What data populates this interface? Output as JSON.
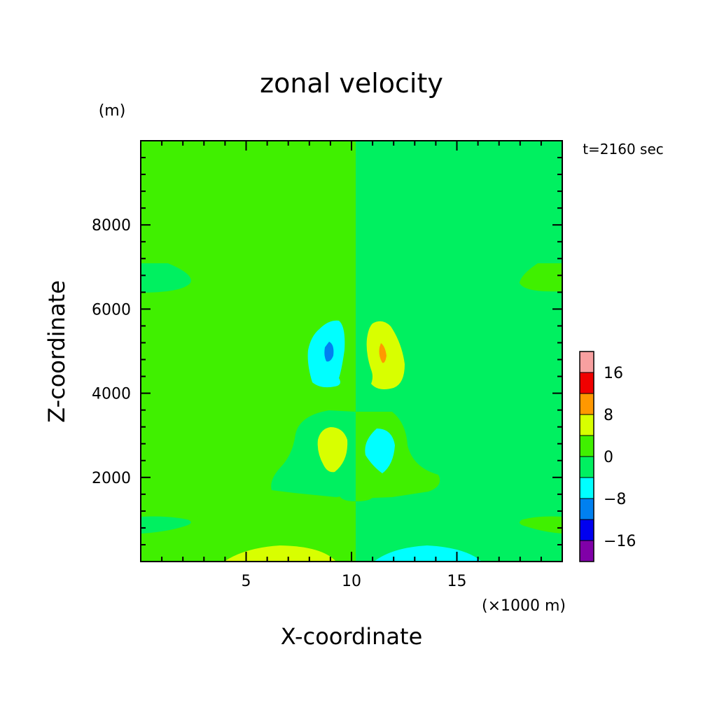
{
  "chart_data": {
    "type": "heatmap",
    "title": "zonal velocity",
    "time_label": "t=2160 sec",
    "xlabel": "X-coordinate",
    "ylabel": "Z-coordinate",
    "x_unit": "(×1000 m)",
    "y_unit": "(m)",
    "xlim": [
      0,
      20
    ],
    "ylim": [
      0,
      10000
    ],
    "x_ticks": [
      5,
      10,
      15
    ],
    "y_ticks": [
      2000,
      4000,
      6000,
      8000
    ],
    "colorbar": {
      "levels": [
        -20,
        -16,
        -12,
        -8,
        -4,
        0,
        4,
        8,
        12,
        16,
        20
      ],
      "colors": [
        "#8000a8",
        "#0000f0",
        "#0080f0",
        "#00ffff",
        "#00f060",
        "#40f000",
        "#d8ff00",
        "#ff9800",
        "#f00000",
        "#f8a0a0"
      ],
      "tick_labels": [
        {
          "value": -16,
          "label": "−16"
        },
        {
          "value": -8,
          "label": "−8"
        },
        {
          "value": 0,
          "label": "0"
        },
        {
          "value": 8,
          "label": "8"
        },
        {
          "value": 16,
          "label": "16"
        }
      ]
    },
    "features": [
      {
        "name": "left-half-background",
        "range": "0 to 4"
      },
      {
        "name": "right-half-background",
        "range": "-4 to 0"
      },
      {
        "name": "negative-core-left",
        "center": [
          9.0,
          5100
        ],
        "range": "-12 to -8"
      },
      {
        "name": "positive-core-right",
        "center": [
          11.4,
          5000
        ],
        "range": "8 to 12"
      },
      {
        "name": "positive-lobe-left-low",
        "center": [
          9.0,
          2800
        ],
        "range": "4 to 8"
      },
      {
        "name": "negative-lobe-right-low",
        "center": [
          11.1,
          2700
        ],
        "range": "-8 to -4"
      }
    ]
  }
}
